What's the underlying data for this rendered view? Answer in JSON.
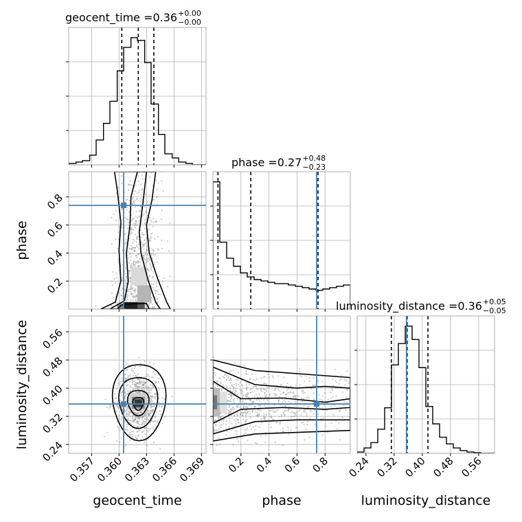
{
  "chart_data": {
    "type": "corner",
    "parameters": [
      "geocent_time",
      "phase",
      "luminosity_distance"
    ],
    "colors": {
      "truth": "#4682b4",
      "hist": "#000000",
      "grid": "#b0b0b0",
      "scatter": "#9a9a9a"
    },
    "titles": [
      {
        "prefix": "geocent_time = ",
        "median": "0.36",
        "plus": "+0.00",
        "minus": "−0.00"
      },
      {
        "prefix": "phase = ",
        "median": "0.27",
        "plus": "+0.48",
        "minus": "−0.23"
      },
      {
        "prefix": "luminosity_distance = ",
        "median": "0.36",
        "plus": "+0.05",
        "minus": "−0.05"
      }
    ],
    "axis_labels": {
      "x": [
        "geocent_time",
        "phase",
        "luminosity_distance"
      ],
      "y": [
        "phase",
        "luminosity_distance"
      ]
    },
    "ranges": {
      "geocent_time": [
        0.3545,
        0.3695
      ],
      "phase": [
        0.0,
        0.98
      ],
      "luminosity_distance": [
        0.215,
        0.605
      ]
    },
    "ticks": {
      "geocent_time": [
        {
          "v": 0.357,
          "label": "0.357"
        },
        {
          "v": 0.36,
          "label": "0.360"
        },
        {
          "v": 0.363,
          "label": "0.363"
        },
        {
          "v": 0.366,
          "label": "0.366"
        },
        {
          "v": 0.369,
          "label": "0.369"
        }
      ],
      "phase": [
        {
          "v": 0.2,
          "label": "0.2"
        },
        {
          "v": 0.4,
          "label": "0.4"
        },
        {
          "v": 0.6,
          "label": "0.6"
        },
        {
          "v": 0.8,
          "label": "0.8"
        }
      ],
      "luminosity_distance": [
        {
          "v": 0.24,
          "label": "0.24"
        },
        {
          "v": 0.32,
          "label": "0.32"
        },
        {
          "v": 0.4,
          "label": "0.40"
        },
        {
          "v": 0.48,
          "label": "0.48"
        },
        {
          "v": 0.56,
          "label": "0.56"
        }
      ]
    },
    "truths": {
      "geocent_time": 0.3605,
      "phase": 0.74,
      "luminosity_distance": 0.355
    },
    "quantiles": {
      "geocent_time": [
        0.3603,
        0.3621,
        0.3638
      ],
      "phase": [
        0.036,
        0.27,
        0.75
      ],
      "luminosity_distance": [
        0.312,
        0.357,
        0.416
      ]
    },
    "hist_geocent_time": {
      "edges": [
        0.3545,
        0.3553,
        0.356,
        0.3568,
        0.3575,
        0.3583,
        0.359,
        0.3598,
        0.3605,
        0.3613,
        0.362,
        0.3628,
        0.3635,
        0.3643,
        0.365,
        0.3658,
        0.3665,
        0.3673,
        0.368,
        0.3688,
        0.3695
      ],
      "counts": [
        0.01,
        0.02,
        0.03,
        0.07,
        0.18,
        0.3,
        0.46,
        0.68,
        0.85,
        0.92,
        0.9,
        0.74,
        0.44,
        0.22,
        0.08,
        0.05,
        0.02,
        0.01,
        0.0,
        0.0
      ]
    },
    "hist_phase": {
      "edges": [
        0.0,
        0.049,
        0.098,
        0.147,
        0.196,
        0.245,
        0.294,
        0.343,
        0.392,
        0.441,
        0.49,
        0.539,
        0.588,
        0.637,
        0.686,
        0.735,
        0.784,
        0.833,
        0.882,
        0.931,
        0.98
      ],
      "counts": [
        0.95,
        0.5,
        0.38,
        0.32,
        0.27,
        0.24,
        0.22,
        0.21,
        0.2,
        0.19,
        0.19,
        0.18,
        0.17,
        0.16,
        0.15,
        0.14,
        0.15,
        0.16,
        0.17,
        0.18
      ]
    },
    "hist_luminosity_distance": {
      "edges": [
        0.215,
        0.2345,
        0.254,
        0.2735,
        0.293,
        0.3125,
        0.332,
        0.3515,
        0.371,
        0.3905,
        0.41,
        0.4295,
        0.449,
        0.4685,
        0.488,
        0.5075,
        0.527,
        0.5465,
        0.566,
        0.5855,
        0.605
      ],
      "counts": [
        0.01,
        0.04,
        0.08,
        0.18,
        0.34,
        0.66,
        0.82,
        0.95,
        0.85,
        0.64,
        0.35,
        0.22,
        0.12,
        0.07,
        0.04,
        0.02,
        0.01,
        0.005,
        0.0,
        0.0
      ]
    }
  }
}
